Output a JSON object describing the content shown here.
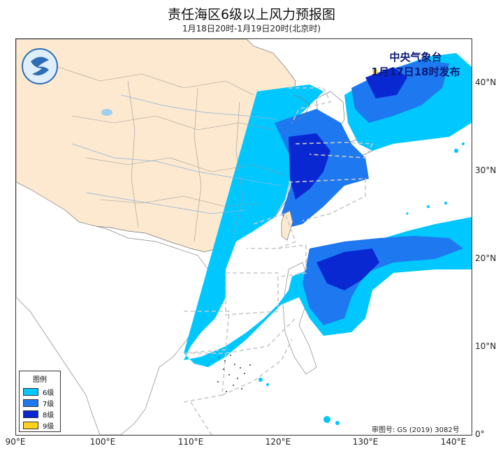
{
  "title": "责任海区6级以上风力预报图",
  "subtitle": "1月18日20时-1月19日20时(北京时)",
  "publisher": {
    "line1": "中央气象台",
    "line2": "1月17日18时发布"
  },
  "review_number": "审图号: GS (2019) 3082号",
  "legend": {
    "title": "图例",
    "items": [
      {
        "label": "6级",
        "color": "#00c8ff"
      },
      {
        "label": "7级",
        "color": "#1e78f0"
      },
      {
        "label": "8级",
        "color": "#0a28d2"
      },
      {
        "label": "9级",
        "color": "#ffd21e"
      }
    ]
  },
  "x_axis": {
    "ticks": [
      {
        "lon": 90,
        "label": "90°E"
      },
      {
        "lon": 100,
        "label": "100°E"
      },
      {
        "lon": 110,
        "label": "110°E"
      },
      {
        "lon": 120,
        "label": "120°E"
      },
      {
        "lon": 130,
        "label": "130°E"
      },
      {
        "lon": 140,
        "label": "140°E"
      }
    ]
  },
  "y_axis": {
    "ticks": [
      {
        "lat": 0,
        "label": "0°"
      },
      {
        "lat": 10,
        "label": "10°N"
      },
      {
        "lat": 20,
        "label": "20°N"
      },
      {
        "lat": 30,
        "label": "30°N"
      },
      {
        "lat": 40,
        "label": "40°N"
      }
    ]
  },
  "extent": {
    "lon_min": 90,
    "lon_max": 142,
    "lat_min": 0,
    "lat_max": 45
  },
  "colors": {
    "land_china": "#fde9cf",
    "sea": "#ffffff",
    "zone_lines": "#c8c8c8",
    "border": "#555555"
  }
}
